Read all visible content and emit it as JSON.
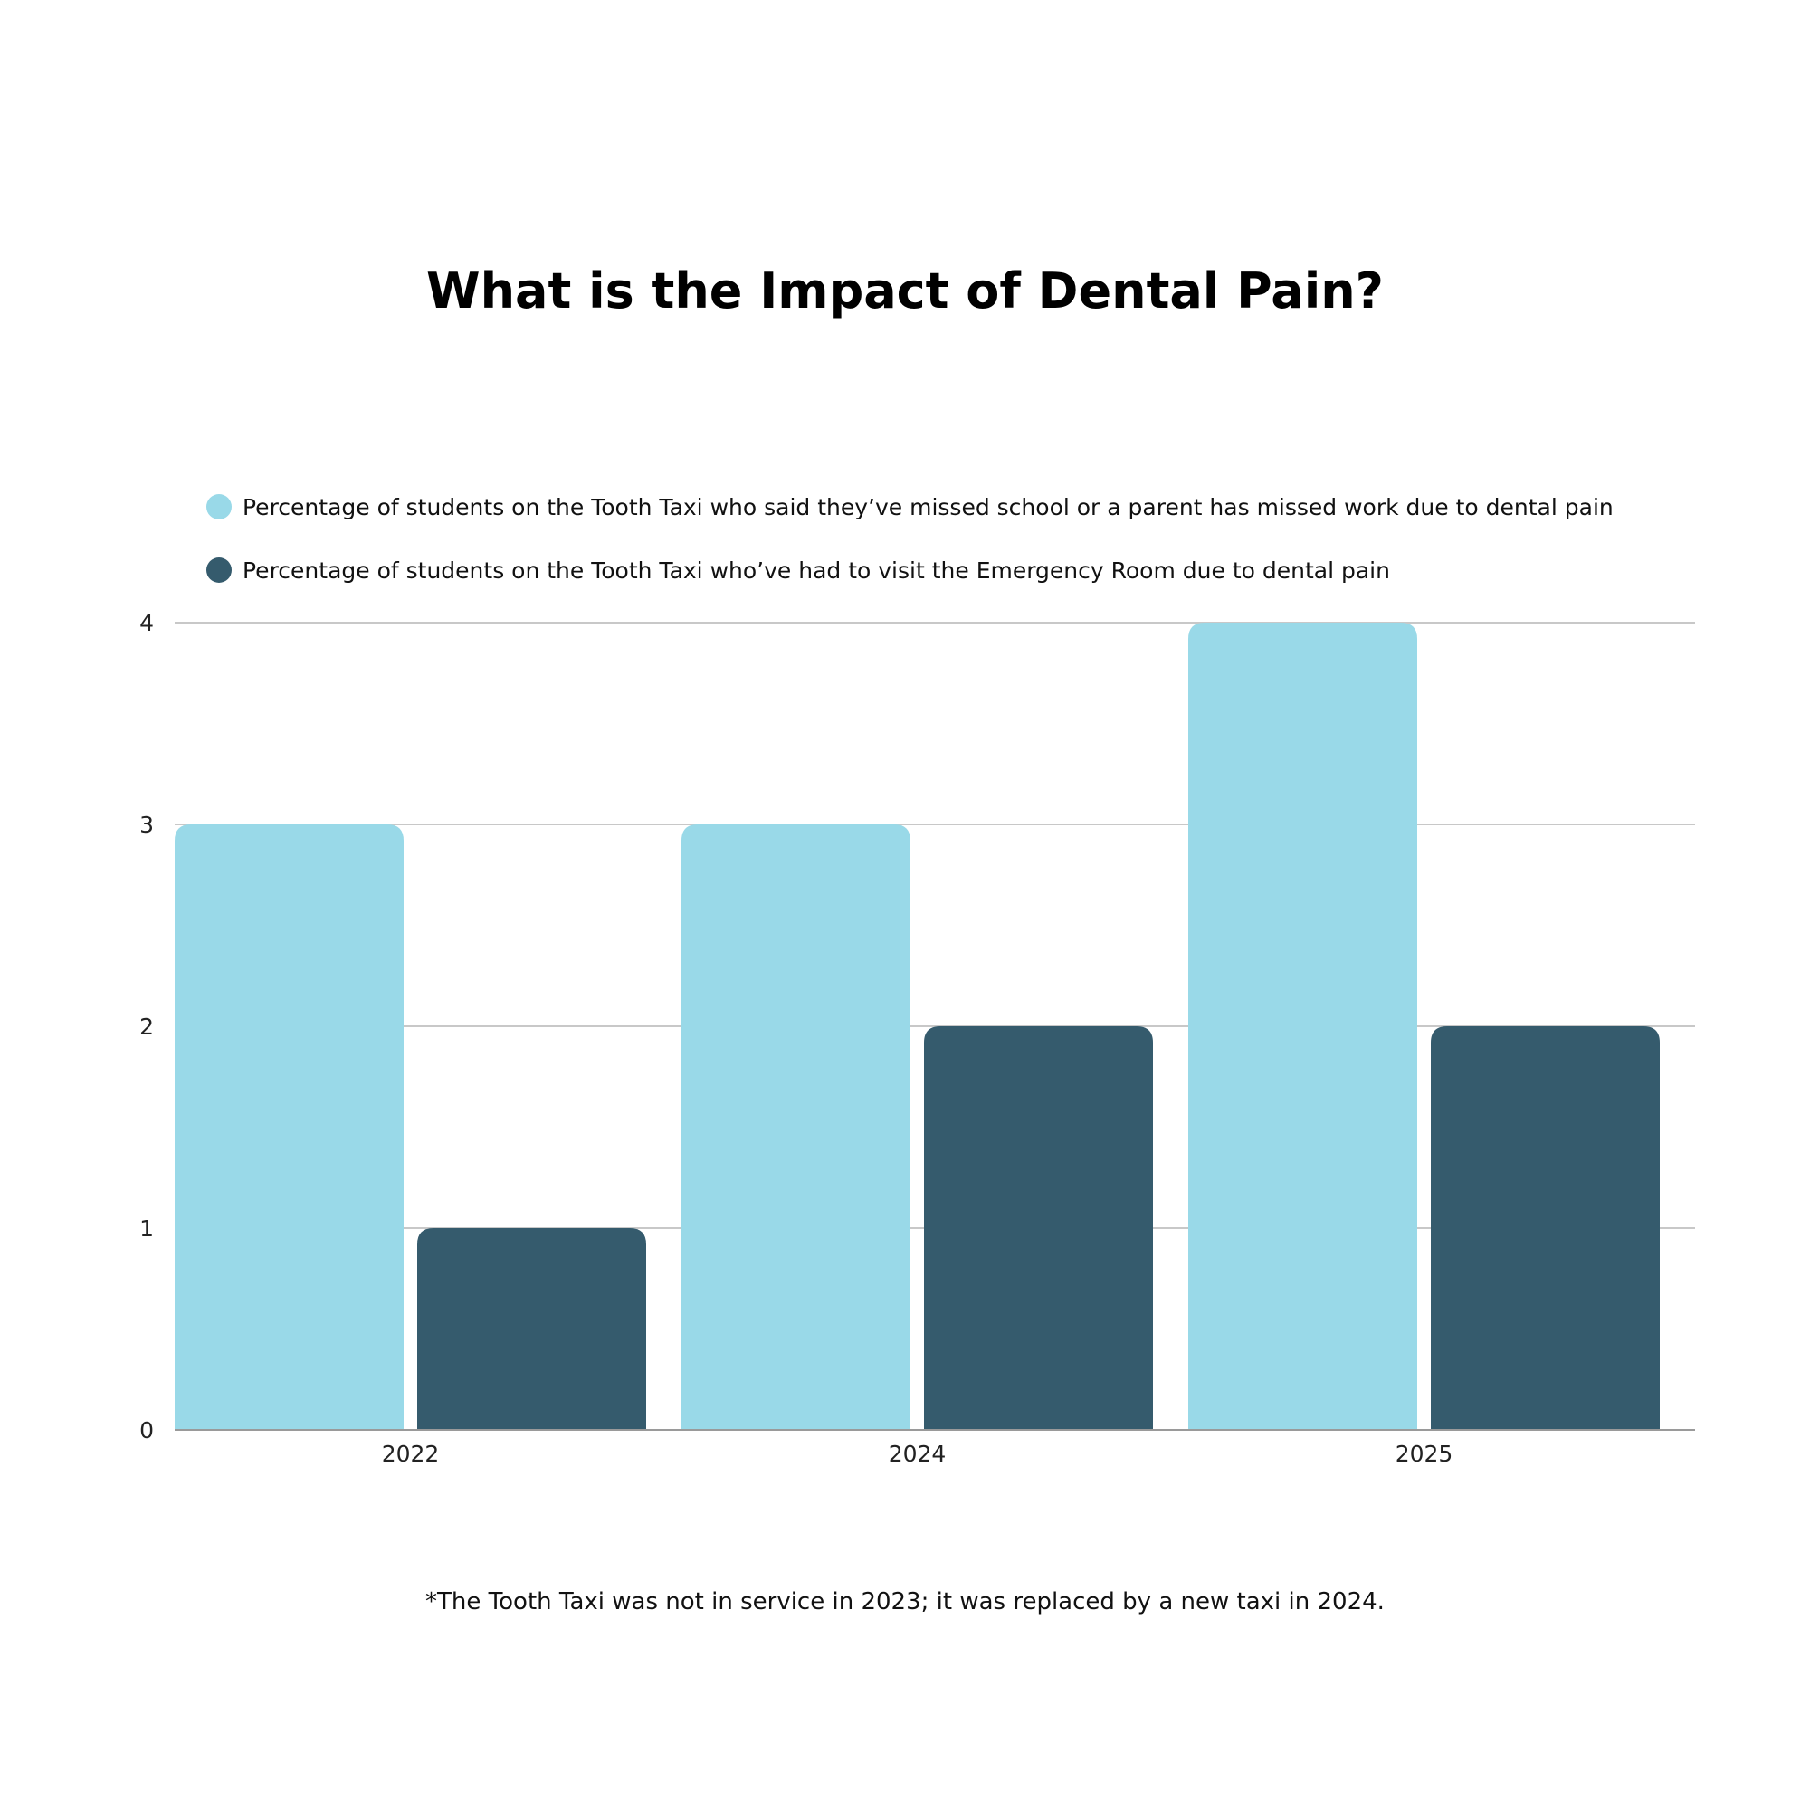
{
  "colors": {
    "series_light": "#99d9e8",
    "series_dark": "#355b6d",
    "gridline": "#c8c8c8",
    "axis": "#9a9a9a"
  },
  "chart_data": {
    "type": "bar",
    "title": "What is the Impact of Dental Pain?",
    "categories": [
      "2022",
      "2024",
      "2025"
    ],
    "series": [
      {
        "name": "Percentage of students on the Tooth Taxi who said they’ve missed school or a parent has missed work due to dental pain",
        "color": "#99d9e8",
        "values": [
          3,
          3,
          4
        ]
      },
      {
        "name": "Percentage of students on the Tooth Taxi who’ve had to visit the Emergency Room due to dental pain",
        "color": "#355b6d",
        "values": [
          1,
          2,
          2
        ]
      }
    ],
    "ylim": [
      0,
      4
    ],
    "yticks": [
      "0",
      "1",
      "2",
      "3",
      "4"
    ],
    "grid": true,
    "legend_position": "top-left",
    "xlabel": "",
    "ylabel": ""
  },
  "footnote": "*The Tooth Taxi was not in service in 2023; it was replaced by a new taxi in 2024."
}
